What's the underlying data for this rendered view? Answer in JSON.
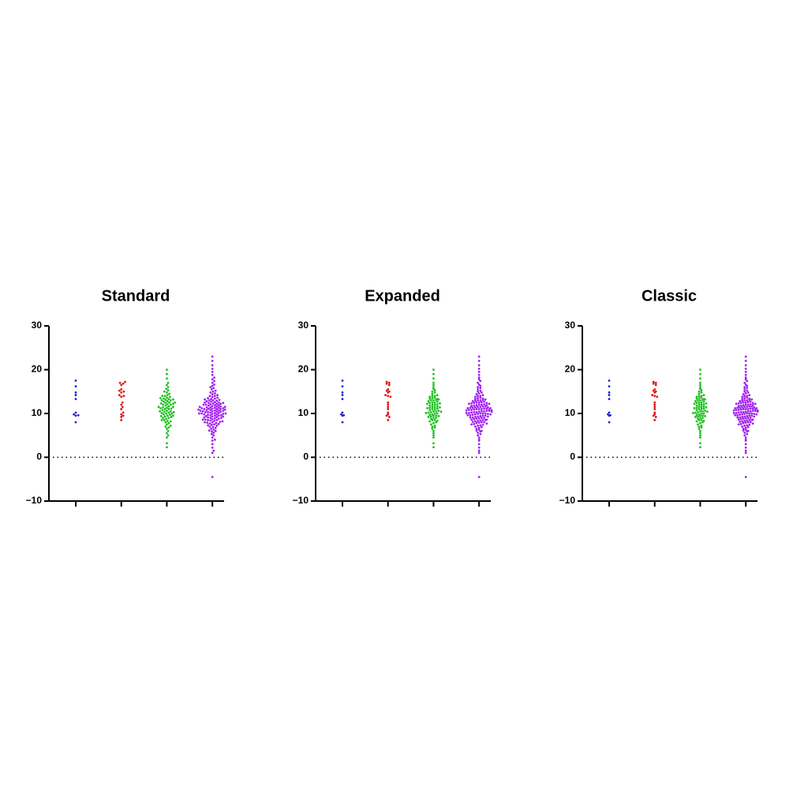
{
  "chart_data": {
    "type": "swarm",
    "titles": [
      "Standard",
      "Expanded",
      "Classic"
    ],
    "ylim": [
      -10,
      30
    ],
    "yticks": [
      {
        "value": -10,
        "label": "−10"
      },
      0,
      10,
      20,
      30
    ],
    "hline": 0,
    "series": [
      {
        "color": "#2020d0",
        "values": [
          17.5,
          16.2,
          14.8,
          14.2,
          13.3,
          10.2,
          9.8,
          9.6,
          9.5,
          8.0
        ]
      },
      {
        "color": "#e01515",
        "values": [
          17.2,
          17,
          16.8,
          16.5,
          15.5,
          15.2,
          15,
          14.8,
          14.2,
          14,
          13.8,
          12.5,
          12,
          11.5,
          11,
          10.2,
          9.8,
          9.5,
          9.2,
          8.5
        ]
      },
      {
        "color": "#1fbf1f",
        "values": [
          2.3,
          3.2,
          4.5,
          5.5,
          6,
          6.5,
          7,
          7.2,
          7.5,
          7.8,
          8,
          8.2,
          8.5,
          8.5,
          8.8,
          9,
          9,
          9.2,
          9.3,
          9.5,
          9.5,
          9.7,
          9.8,
          10,
          10,
          10.1,
          10.2,
          10.3,
          10.5,
          10.5,
          10.6,
          10.8,
          11,
          11,
          11.1,
          11.2,
          11.3,
          11.5,
          11.5,
          11.6,
          11.8,
          12,
          12,
          12.1,
          12.2,
          12.4,
          12.5,
          12.5,
          12.7,
          12.8,
          13,
          13,
          13.1,
          13.2,
          13.4,
          13.5,
          13.6,
          13.8,
          14,
          14,
          14.2,
          14.5,
          14.8,
          15,
          15.3,
          15.6,
          16,
          16.5,
          17,
          18,
          19,
          20,
          5,
          6.8,
          8.3,
          9.4,
          10.4,
          11.4,
          12.3,
          13.3
        ]
      },
      {
        "color": "#a020f0",
        "values": [
          -4.5,
          1,
          1.5,
          2.2,
          3,
          3.8,
          4,
          4.5,
          5,
          5.3,
          5.6,
          5.9,
          6.1,
          6.3,
          6.5,
          6.7,
          6.9,
          7,
          7.2,
          7.3,
          7.5,
          7.6,
          7.8,
          7.9,
          8,
          8,
          8.1,
          8.2,
          8.3,
          8.4,
          8.5,
          8.5,
          8.6,
          8.7,
          8.8,
          8.9,
          9,
          9,
          9.1,
          9.1,
          9.2,
          9.3,
          9.4,
          9.5,
          9.5,
          9.6,
          9.6,
          9.7,
          9.8,
          9.9,
          10,
          10,
          10,
          10.1,
          10.1,
          10.2,
          10.3,
          10.3,
          10.4,
          10.5,
          10.5,
          10.6,
          10.6,
          10.7,
          10.8,
          10.8,
          10.9,
          11,
          11,
          11,
          11.1,
          11.1,
          11.2,
          11.3,
          11.3,
          11.4,
          11.5,
          11.5,
          11.6,
          11.6,
          11.7,
          11.8,
          11.9,
          12,
          12,
          12.1,
          12.2,
          12.3,
          12.4,
          12.5,
          12.5,
          12.6,
          12.7,
          12.8,
          12.9,
          13,
          13,
          13.1,
          13.2,
          13.3,
          13.5,
          13.6,
          13.8,
          14,
          14,
          14.2,
          14.4,
          14.6,
          14.8,
          15,
          15.2,
          15.5,
          15.8,
          16,
          16.3,
          16.6,
          17,
          17.4,
          17.8,
          18.2,
          18.8,
          19.5,
          20.2,
          21,
          22,
          23,
          7.4,
          8.6,
          9.3,
          9.9,
          10.4,
          10.9,
          11.4,
          11.9,
          12.4,
          13.4,
          6,
          7.7,
          9.8,
          10.7,
          11.2,
          12.2
        ]
      }
    ]
  }
}
